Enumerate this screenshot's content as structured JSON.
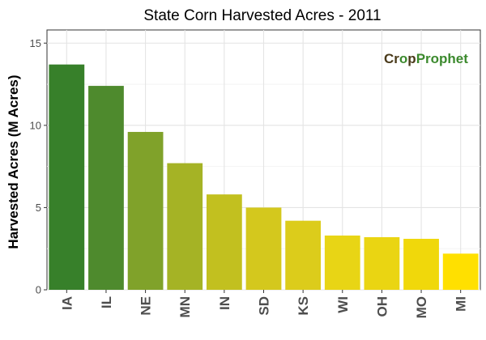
{
  "chart_data": {
    "type": "bar",
    "title": "State Corn Harvested Acres - 2011",
    "xlabel": "",
    "ylabel": "Harvested Acres (M Acres)",
    "categories": [
      "IA",
      "IL",
      "NE",
      "MN",
      "IN",
      "SD",
      "KS",
      "WI",
      "OH",
      "MO",
      "MI"
    ],
    "values": [
      13.7,
      12.4,
      9.6,
      7.7,
      5.8,
      5.0,
      4.2,
      3.3,
      3.2,
      3.1,
      2.2
    ],
    "ylim": [
      0,
      15.8
    ],
    "yticks": [
      0,
      5,
      10,
      15
    ],
    "ytick_labels": [
      "0",
      "5",
      "10",
      "15"
    ],
    "grid": true,
    "bar_colors": [
      "#37802a",
      "#4e8a2d",
      "#80a22a",
      "#a5b325",
      "#c2c01f",
      "#d4c81d",
      "#dccc1b",
      "#e8d515",
      "#ead512",
      "#f0d80b",
      "#ffe000"
    ]
  },
  "logo": {
    "part1": "Cr",
    "part2": "o",
    "part3": "p",
    "part4": "Prophet",
    "color_dark": "#4a3a1a",
    "color_green": "#3c8a2e"
  }
}
